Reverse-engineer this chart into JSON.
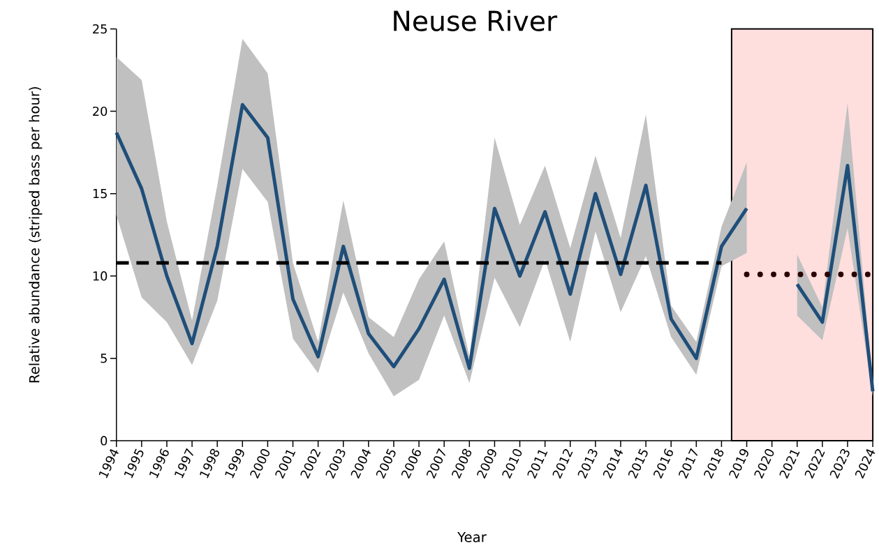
{
  "chart_data": {
    "type": "line",
    "title": "Neuse River",
    "xlabel": "Year",
    "ylabel": "Relative abundance (striped bass per hour)",
    "x": [
      1994,
      1995,
      1996,
      1997,
      1998,
      1999,
      2000,
      2001,
      2002,
      2003,
      2004,
      2005,
      2006,
      2007,
      2008,
      2009,
      2010,
      2011,
      2012,
      2013,
      2014,
      2015,
      2016,
      2017,
      2018,
      2019,
      2020,
      2021,
      2022,
      2023,
      2024
    ],
    "series": [
      {
        "type": "line",
        "color": "#1f4e79",
        "values": [
          18.7,
          15.3,
          10.0,
          5.9,
          11.8,
          20.4,
          18.4,
          8.6,
          5.1,
          11.8,
          6.5,
          4.5,
          6.8,
          9.8,
          4.4,
          14.1,
          10.0,
          13.9,
          8.9,
          15.0,
          10.1,
          15.5,
          7.4,
          5.0,
          11.8,
          14.1,
          null,
          9.5,
          7.2,
          16.7,
          3.0
        ],
        "lower": [
          13.7,
          8.7,
          7.2,
          4.6,
          8.5,
          16.5,
          14.5,
          6.2,
          4.1,
          9.0,
          5.3,
          2.7,
          3.7,
          7.6,
          3.5,
          9.9,
          6.9,
          11.0,
          6.0,
          12.7,
          7.8,
          11.2,
          6.3,
          4.0,
          10.6,
          11.4,
          null,
          7.6,
          6.1,
          12.9,
          2.7
        ],
        "upper": [
          23.3,
          21.9,
          13.3,
          7.3,
          15.5,
          24.4,
          22.3,
          10.8,
          6.0,
          14.6,
          7.5,
          6.3,
          9.8,
          12.1,
          5.1,
          18.4,
          13.1,
          16.7,
          11.7,
          17.3,
          12.3,
          19.8,
          8.2,
          6.0,
          13.0,
          16.9,
          null,
          11.3,
          8.1,
          20.5,
          3.4
        ]
      },
      {
        "type": "line",
        "color": "#000000",
        "line_style": "dashed",
        "x": [
          1994,
          2018
        ],
        "values": [
          10.8,
          10.8
        ]
      },
      {
        "type": "line",
        "color": "#2a0000",
        "line_style": "dotted",
        "x": [
          2019,
          2024
        ],
        "values": [
          10.1,
          10.1
        ]
      }
    ],
    "bands": [
      {
        "axis": "x",
        "from": 2018.4,
        "to": 2024,
        "color": "#ffdede"
      }
    ],
    "xlim": [
      1994,
      2024
    ],
    "xticks": [
      1994,
      1995,
      1996,
      1997,
      1998,
      1999,
      2000,
      2001,
      2002,
      2003,
      2004,
      2005,
      2006,
      2007,
      2008,
      2009,
      2010,
      2011,
      2012,
      2013,
      2014,
      2015,
      2016,
      2017,
      2018,
      2019,
      2020,
      2021,
      2022,
      2023,
      2024
    ],
    "ylim": [
      0,
      25
    ],
    "yticks": [
      0,
      5,
      10,
      15,
      20,
      25
    ]
  }
}
